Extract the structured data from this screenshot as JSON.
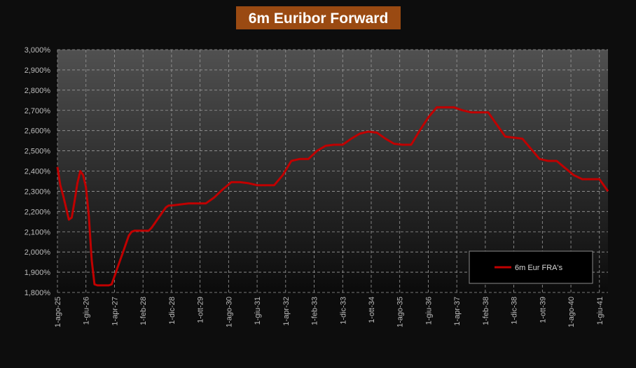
{
  "chart_data": {
    "type": "line",
    "title": "6m Euribor Forward",
    "ylim": [
      1.8,
      3.0
    ],
    "y_ticks": [
      1.8,
      1.9,
      2.0,
      2.1,
      2.2,
      2.3,
      2.4,
      2.5,
      2.6,
      2.7,
      2.8,
      2.9,
      3.0
    ],
    "y_tick_labels": [
      "1,800%",
      "1,900%",
      "2,000%",
      "2,100%",
      "2,200%",
      "2,300%",
      "2,400%",
      "2,500%",
      "2,600%",
      "2,700%",
      "2,800%",
      "2,900%",
      "3,000%"
    ],
    "x_tick_labels": [
      "1-ago-25",
      "1-giu-26",
      "1-apr-27",
      "1-feb-28",
      "1-dic-28",
      "1-ott-29",
      "1-ago-30",
      "1-giu-31",
      "1-apr-32",
      "1-feb-33",
      "1-dic-33",
      "1-ott-34",
      "1-ago-35",
      "1-giu-36",
      "1-apr-37",
      "1-feb-38",
      "1-dic-38",
      "1-ott-39",
      "1-ago-40",
      "1-giu-41"
    ],
    "grid": true,
    "legend": "bottom-right",
    "colors": {
      "series": "#c00000",
      "title_bg": "#9a4a12",
      "background": "#0d0d0d"
    },
    "series": [
      {
        "name": "6m Eur FRA's",
        "x": [
          "2025-08",
          "2025-09",
          "2025-10",
          "2025-11",
          "2025-12",
          "2026-01",
          "2026-02",
          "2026-03",
          "2026-04",
          "2026-05",
          "2026-06",
          "2026-07",
          "2026-08",
          "2026-09",
          "2026-10",
          "2026-11",
          "2026-12",
          "2027-01",
          "2027-02",
          "2027-03",
          "2027-04",
          "2027-05",
          "2027-06",
          "2027-07",
          "2027-08",
          "2027-09",
          "2027-10",
          "2027-11",
          "2027-12",
          "2028-01",
          "2028-02",
          "2028-03",
          "2028-04",
          "2028-05",
          "2028-06",
          "2028-07",
          "2028-08",
          "2028-09",
          "2028-10",
          "2028-11",
          "2028-12",
          "2029-06",
          "2029-12",
          "2030-03",
          "2030-06",
          "2030-09",
          "2030-12",
          "2031-03",
          "2031-06",
          "2031-09",
          "2031-12",
          "2032-03",
          "2032-06",
          "2032-09",
          "2032-12",
          "2033-03",
          "2033-06",
          "2033-09",
          "2033-12",
          "2034-03",
          "2034-06",
          "2034-09",
          "2034-12",
          "2035-03",
          "2035-06",
          "2035-09",
          "2035-12",
          "2036-03",
          "2036-06",
          "2036-09",
          "2036-12",
          "2037-03",
          "2037-06",
          "2037-09",
          "2037-12",
          "2038-03",
          "2038-06",
          "2038-09",
          "2038-12",
          "2039-03",
          "2039-06",
          "2039-09",
          "2039-12",
          "2040-03",
          "2040-06",
          "2040-09",
          "2040-12",
          "2041-03",
          "2041-06",
          "2041-09"
        ],
        "values": [
          2.42,
          2.33,
          2.28,
          2.22,
          2.16,
          2.17,
          2.25,
          2.34,
          2.4,
          2.38,
          2.32,
          2.18,
          1.96,
          1.84,
          1.835,
          1.835,
          1.835,
          1.835,
          1.835,
          1.84,
          1.88,
          1.92,
          1.96,
          2.0,
          2.04,
          2.08,
          2.1,
          2.105,
          2.105,
          2.105,
          2.105,
          2.105,
          2.105,
          2.12,
          2.14,
          2.16,
          2.18,
          2.2,
          2.22,
          2.23,
          2.23,
          2.24,
          2.24,
          2.27,
          2.31,
          2.345,
          2.345,
          2.34,
          2.33,
          2.33,
          2.33,
          2.38,
          2.45,
          2.46,
          2.46,
          2.5,
          2.525,
          2.53,
          2.53,
          2.56,
          2.585,
          2.595,
          2.59,
          2.56,
          2.535,
          2.53,
          2.53,
          2.6,
          2.665,
          2.715,
          2.715,
          2.715,
          2.7,
          2.69,
          2.69,
          2.69,
          2.63,
          2.57,
          2.565,
          2.56,
          2.51,
          2.46,
          2.45,
          2.45,
          2.415,
          2.38,
          2.36,
          2.36,
          2.36,
          2.3
        ]
      }
    ]
  }
}
